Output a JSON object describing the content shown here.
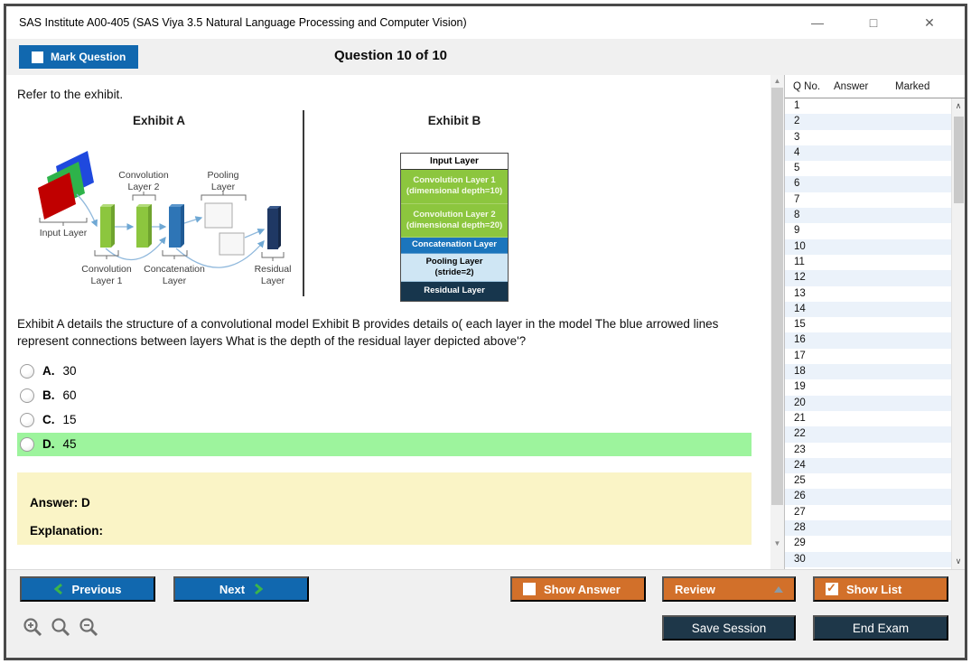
{
  "window": {
    "title": "SAS Institute A00-405 (SAS Viya 3.5 Natural Language Processing and Computer Vision)",
    "minimize_icon": "—",
    "maximize_icon": "□",
    "close_icon": "✕"
  },
  "header": {
    "mark_question": "Mark Question",
    "mark_question_checked": false,
    "counter": "Question 10 of 10"
  },
  "main": {
    "refer_text": "Refer to the exhibit.",
    "question_text": "Exhibit A details the structure of a convolutional model Exhibit B provides details o( each layer in the model The blue arrowed lines represent connections between layers What is the depth of the residual layer depicted above'?",
    "options": [
      {
        "letter": "A.",
        "text": "30",
        "highlighted": false
      },
      {
        "letter": "B.",
        "text": "60",
        "highlighted": false
      },
      {
        "letter": "C.",
        "text": "15",
        "highlighted": false
      },
      {
        "letter": "D.",
        "text": "45",
        "highlighted": true
      }
    ],
    "answer_line": "Answer: D",
    "explanation_line": "Explanation:"
  },
  "exhibit_a": {
    "title": "Exhibit A",
    "input_label": "Input Layer",
    "conv1_line1": "Convolution",
    "conv1_line2": "Layer 1",
    "conv2_line1": "Convolution",
    "conv2_line2": "Layer 2",
    "pooling_line1": "Pooling",
    "pooling_line2": "Layer",
    "concat_line1": "Concatenation",
    "concat_line2": "Layer",
    "residual_line1": "Residual",
    "residual_line2": "Layer"
  },
  "exhibit_b": {
    "title": "Exhibit B",
    "rows": [
      {
        "line1": "Input Layer",
        "line2": ""
      },
      {
        "line1": "Convolution Layer 1",
        "line2": "(dimensional depth=10)"
      },
      {
        "line1": "Convolution Layer 2",
        "line2": "(dimensional depth=20)"
      },
      {
        "line1": "Concatenation Layer",
        "line2": ""
      },
      {
        "line1": "Pooling Layer",
        "line2": "(stride=2)"
      },
      {
        "line1": "Residual Layer",
        "line2": ""
      }
    ]
  },
  "sidebar": {
    "columns": [
      "Q No.",
      "Answer",
      "Marked"
    ],
    "question_numbers": [
      "1",
      "2",
      "3",
      "4",
      "5",
      "6",
      "7",
      "8",
      "9",
      "10",
      "11",
      "12",
      "13",
      "14",
      "15",
      "16",
      "17",
      "18",
      "19",
      "20",
      "21",
      "22",
      "23",
      "24",
      "25",
      "26",
      "27",
      "28",
      "29",
      "30"
    ]
  },
  "footer": {
    "previous": "Previous",
    "next": "Next",
    "show_answer": "Show Answer",
    "show_answer_checked": false,
    "review": "Review",
    "show_list": "Show List",
    "show_list_checked": true,
    "save_session": "Save Session",
    "end_exam": "End Exam"
  },
  "colors": {
    "accent_blue": "#1168AF",
    "accent_orange": "#D2702A",
    "dark_navy": "#1E3749",
    "highlight_green": "#9DF49D",
    "answer_box_yellow": "#FAF4C6",
    "chevron_green": "#3CB54A",
    "exhibit_green": "#8CC63E",
    "exhibit_blue": "#1B75BC",
    "exhibit_light_blue": "#CFE6F4",
    "exhibit_navy": "#17364D",
    "sidebar_alt_row": "#EBF2FA"
  }
}
